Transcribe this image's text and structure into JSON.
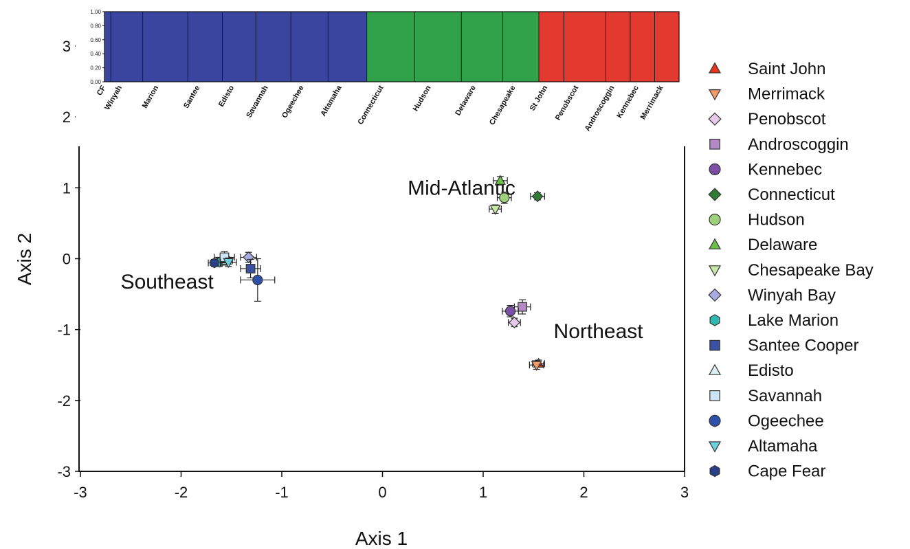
{
  "chart_data": [
    {
      "type": "scatter",
      "xlabel": "Axis 1",
      "ylabel": "Axis 2",
      "xlim": [
        -3,
        3
      ],
      "ylim": [
        -3,
        3
      ],
      "x_ticks": [
        "-3",
        "-2",
        "-1",
        "0",
        "1",
        "2",
        "3"
      ],
      "y_ticks": [
        "3",
        "2",
        "1",
        "0",
        "-1",
        "-2",
        "-3"
      ],
      "grid": false,
      "legend_position": "right",
      "annotations": [
        {
          "text": "Mid-Atlantic",
          "x": 0.25,
          "y": 0.9
        },
        {
          "text": "Southeast",
          "x": -2.6,
          "y": -0.42
        },
        {
          "text": "Northeast",
          "x": 1.7,
          "y": -1.12
        }
      ],
      "series": [
        {
          "name": "Saint John",
          "marker": "triangle-up",
          "color": "#e8341c",
          "x": 1.55,
          "y": -1.48,
          "xerr": 0.06,
          "yerr": 0.05
        },
        {
          "name": "Merrimack",
          "marker": "triangle-down",
          "color": "#f39a6b",
          "x": 1.53,
          "y": -1.5,
          "xerr": 0.07,
          "yerr": 0.06
        },
        {
          "name": "Penobscot",
          "marker": "diamond",
          "color": "#e8c8e8",
          "x": 1.31,
          "y": -0.9,
          "xerr": 0.06,
          "yerr": 0.06
        },
        {
          "name": "Androscoggin",
          "marker": "square",
          "color": "#b48ac6",
          "x": 1.39,
          "y": -0.68,
          "xerr": 0.08,
          "yerr": 0.1
        },
        {
          "name": "Kennebec",
          "marker": "circle",
          "color": "#7b4fa6",
          "x": 1.27,
          "y": -0.74,
          "xerr": 0.08,
          "yerr": 0.08
        },
        {
          "name": "Connecticut",
          "marker": "diamond",
          "color": "#2e7a36",
          "x": 1.54,
          "y": 0.88,
          "xerr": 0.07,
          "yerr": 0.05
        },
        {
          "name": "Hudson",
          "marker": "circle",
          "color": "#9fd07a",
          "x": 1.21,
          "y": 0.86,
          "xerr": 0.07,
          "yerr": 0.08
        },
        {
          "name": "Delaware",
          "marker": "triangle-up",
          "color": "#6cc04a",
          "x": 1.17,
          "y": 1.1,
          "xerr": 0.07,
          "yerr": 0.06
        },
        {
          "name": "Chesapeake Bay",
          "marker": "triangle-down",
          "color": "#c9e7a6",
          "x": 1.12,
          "y": 0.7,
          "xerr": 0.06,
          "yerr": 0.06
        },
        {
          "name": "Winyah Bay",
          "marker": "diamond",
          "color": "#a8abe0",
          "x": -1.33,
          "y": 0.02,
          "xerr": 0.08,
          "yerr": 0.07
        },
        {
          "name": "Lake Marion",
          "marker": "hexagon",
          "color": "#2fb8b0",
          "x": -1.62,
          "y": -0.05,
          "xerr": 0.06,
          "yerr": 0.06
        },
        {
          "name": "Santee Cooper",
          "marker": "square",
          "color": "#3b4fa3",
          "x": -1.31,
          "y": -0.14,
          "xerr": 0.1,
          "yerr": 0.13
        },
        {
          "name": "Edisto",
          "marker": "triangle-up",
          "color": "#d8f0f4",
          "x": -1.55,
          "y": -0.03,
          "xerr": 0.06,
          "yerr": 0.06
        },
        {
          "name": "Savannah",
          "marker": "square",
          "color": "#cde4f4",
          "x": -1.57,
          "y": 0.02,
          "xerr": 0.1,
          "yerr": 0.08
        },
        {
          "name": "Ogeechee",
          "marker": "circle",
          "color": "#2f4fa8",
          "x": -1.24,
          "y": -0.3,
          "xerr": 0.17,
          "yerr": 0.3
        },
        {
          "name": "Altamaha",
          "marker": "triangle-down",
          "color": "#6fd0e0",
          "x": -1.53,
          "y": -0.05,
          "xerr": 0.08,
          "yerr": 0.06
        },
        {
          "name": "Cape Fear",
          "marker": "hexagon",
          "color": "#2a3f86",
          "x": -1.67,
          "y": -0.06,
          "xerr": 0.06,
          "yerr": 0.05
        }
      ]
    },
    {
      "type": "bar",
      "stacked": true,
      "ylim": [
        0,
        1
      ],
      "y_ticks": [
        "1.00",
        "0.80",
        "0.60",
        "0.40",
        "0.20",
        "0.00"
      ],
      "cluster_colors": [
        "#3a45a0",
        "#2fa24a",
        "#e23a2e"
      ],
      "populations": [
        {
          "label": "CF",
          "share": 0.012,
          "dominant": 0
        },
        {
          "label": "Winyah",
          "share": 0.06,
          "dominant": 0
        },
        {
          "label": "Marion",
          "share": 0.085,
          "dominant": 0
        },
        {
          "label": "Santee",
          "share": 0.065,
          "dominant": 0
        },
        {
          "label": "Edisto",
          "share": 0.063,
          "dominant": 0
        },
        {
          "label": "Savannah",
          "share": 0.066,
          "dominant": 0
        },
        {
          "label": "Ogeechee",
          "share": 0.07,
          "dominant": 0
        },
        {
          "label": "Altamaha",
          "share": 0.073,
          "dominant": 0
        },
        {
          "label": "Connecticut",
          "share": 0.09,
          "dominant": 1
        },
        {
          "label": "Hudson",
          "share": 0.088,
          "dominant": 1
        },
        {
          "label": "Delaware",
          "share": 0.078,
          "dominant": 1
        },
        {
          "label": "Chesapeake",
          "share": 0.068,
          "dominant": 1
        },
        {
          "label": "St John",
          "share": 0.047,
          "dominant": 2
        },
        {
          "label": "Penobscot",
          "share": 0.079,
          "dominant": 2
        },
        {
          "label": "Androscoggin",
          "share": 0.046,
          "dominant": 2
        },
        {
          "label": "Kennebec",
          "share": 0.046,
          "dominant": 2
        },
        {
          "label": "Merrimack",
          "share": 0.046,
          "dominant": 2
        }
      ]
    }
  ]
}
